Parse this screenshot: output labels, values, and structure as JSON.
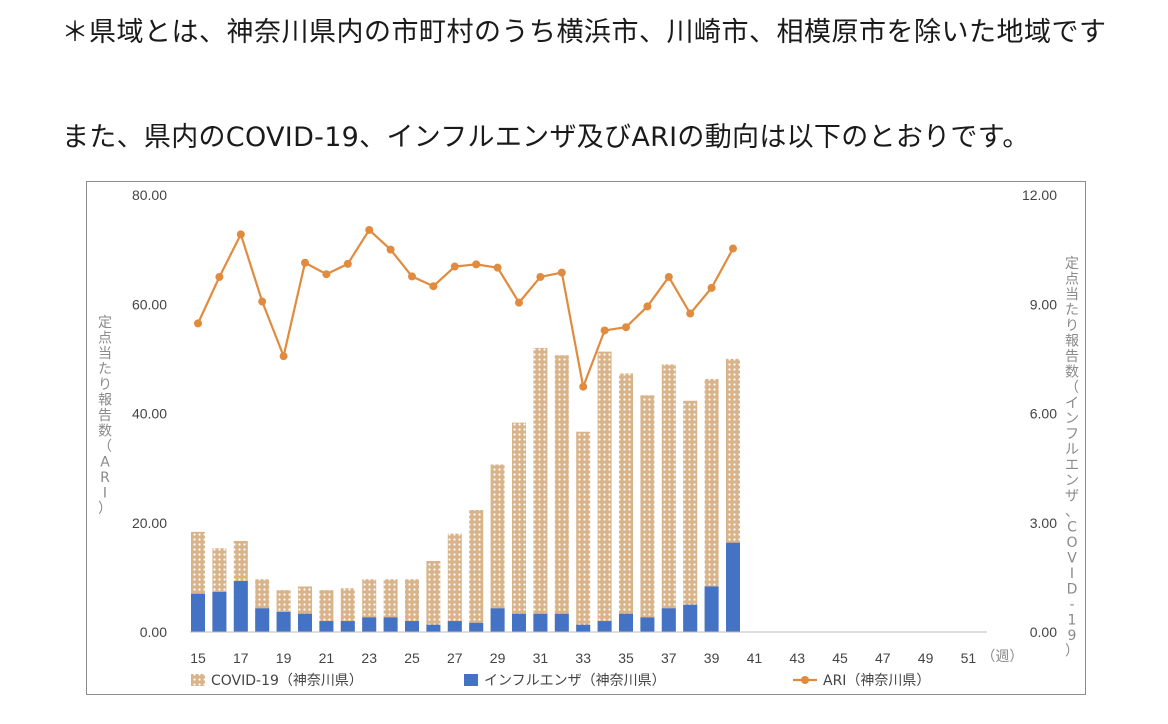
{
  "intro": {
    "note": "＊県域とは、神奈川県内の市町村のうち横浜市、川崎市、相模原市を除いた地域です",
    "lead": "また、県内のCOVID-19、インフルエンザ及びARIの動向は以下のとおりです。"
  },
  "colors": {
    "covid": "#d9b48a",
    "covid_dot": "#ffffff",
    "influenza": "#4472c4",
    "ari": "#e08b3e",
    "axis": "#bfbfbf"
  },
  "chart_data": {
    "type": "bar",
    "title": "",
    "x": [
      15,
      16,
      17,
      18,
      19,
      20,
      21,
      22,
      23,
      24,
      25,
      26,
      27,
      28,
      29,
      30,
      31,
      32,
      33,
      34,
      35,
      36,
      37,
      38,
      39,
      40
    ],
    "x_ticks": [
      "15",
      "17",
      "19",
      "21",
      "23",
      "25",
      "27",
      "29",
      "31",
      "33",
      "35",
      "37",
      "39",
      "41",
      "43",
      "45",
      "47",
      "49",
      "51"
    ],
    "x_unit": "（週）",
    "x_range": [
      15,
      52
    ],
    "y_left": {
      "label": "定点当たり報告数（ARI）",
      "range": [
        0,
        80
      ],
      "ticks": [
        "0.00",
        "20.00",
        "40.00",
        "60.00",
        "80.00"
      ]
    },
    "y_right": {
      "label": "定点当たり報告数（インフルエンザ、COVID-19）",
      "range": [
        0,
        12
      ],
      "ticks": [
        "0.00",
        "3.00",
        "6.00",
        "9.00",
        "12.00"
      ]
    },
    "series": [
      {
        "name": "COVID-19（神奈川県）",
        "type": "bar",
        "axis": "right",
        "values": [
          2.75,
          2.3,
          2.5,
          1.45,
          1.15,
          1.25,
          1.15,
          1.2,
          1.45,
          1.45,
          1.45,
          1.95,
          2.7,
          3.35,
          4.6,
          5.75,
          7.8,
          7.6,
          5.5,
          7.7,
          7.1,
          6.5,
          7.35,
          6.35,
          6.95,
          7.5
        ]
      },
      {
        "name": "インフルエンザ（神奈川県）",
        "type": "bar",
        "axis": "right",
        "values": [
          1.05,
          1.1,
          1.4,
          0.65,
          0.55,
          0.5,
          0.3,
          0.3,
          0.4,
          0.4,
          0.3,
          0.2,
          0.3,
          0.25,
          0.65,
          0.5,
          0.5,
          0.5,
          0.2,
          0.3,
          0.5,
          0.4,
          0.65,
          0.75,
          1.25,
          2.45
        ]
      },
      {
        "name": "ARI（神奈川県）",
        "type": "line",
        "axis": "left",
        "values": [
          56.5,
          65.0,
          72.8,
          60.5,
          50.5,
          67.6,
          65.5,
          67.4,
          73.6,
          70.0,
          65.1,
          63.3,
          66.9,
          67.3,
          66.7,
          60.3,
          65.0,
          65.8,
          44.9,
          55.2,
          55.8,
          59.6,
          65.0,
          58.3,
          63.0,
          70.2
        ]
      }
    ],
    "legend_position": "bottom",
    "grid": false
  }
}
